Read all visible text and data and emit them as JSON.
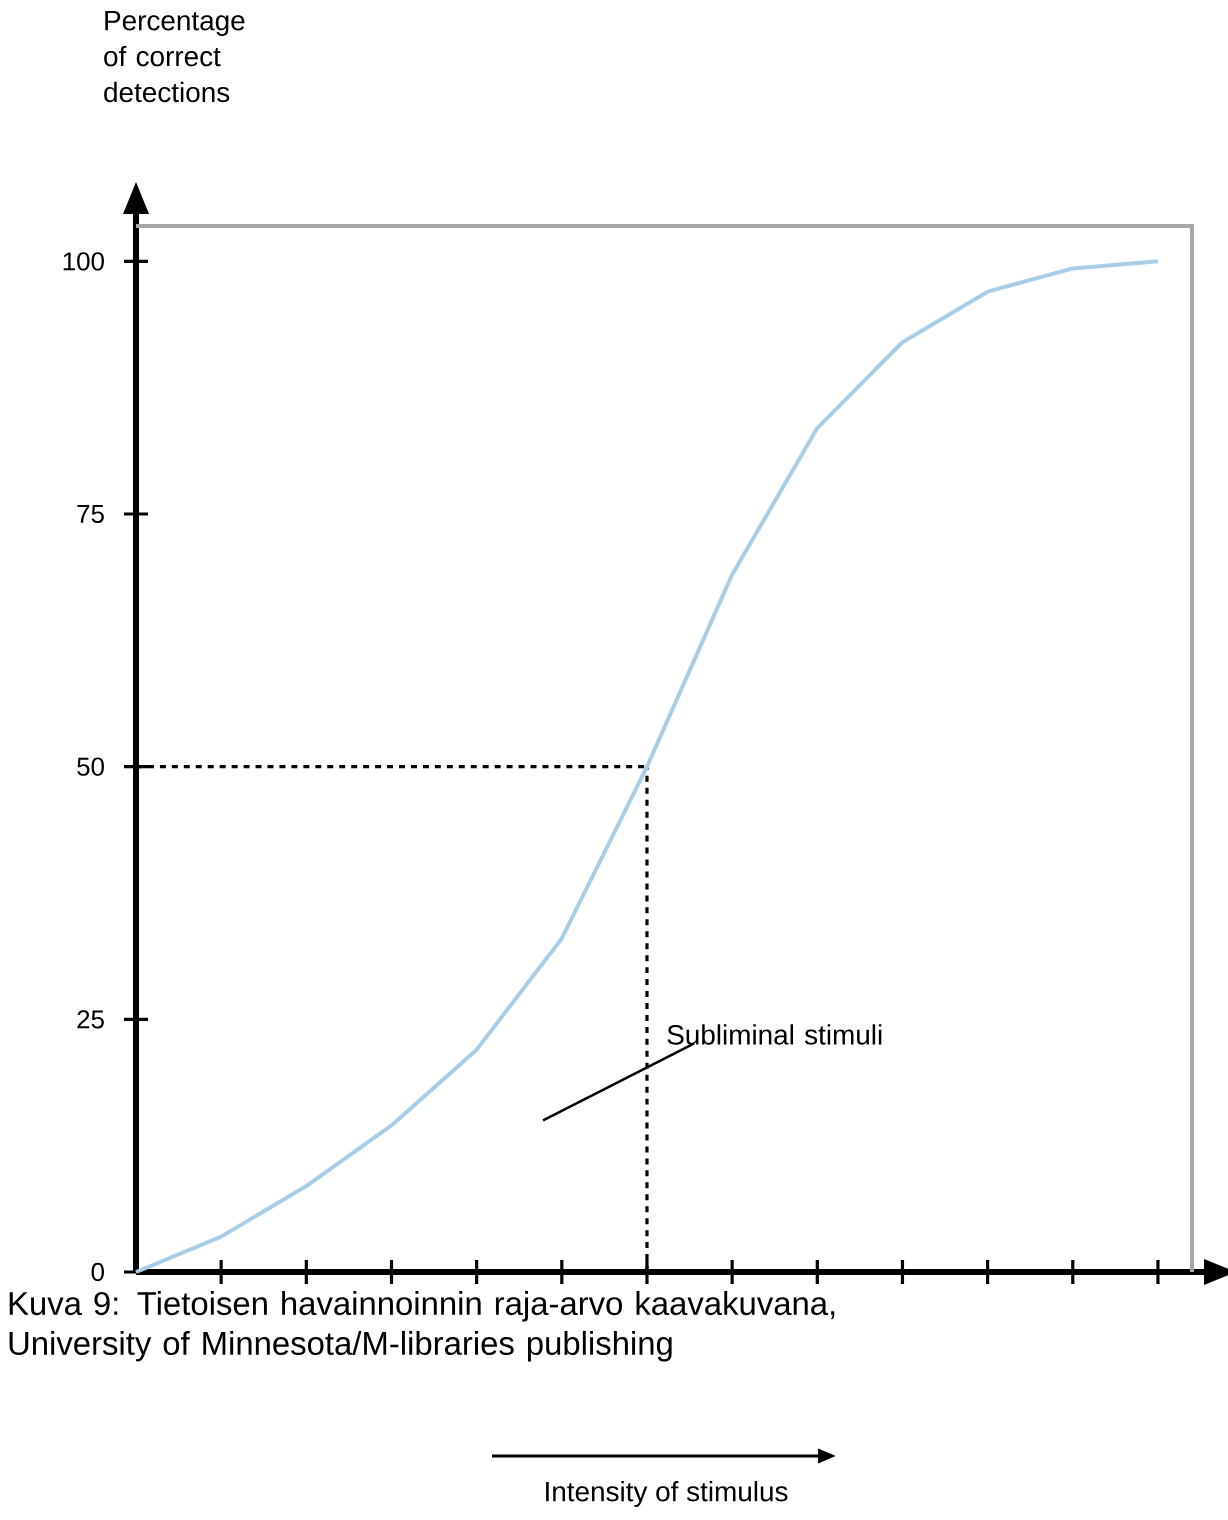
{
  "chart_data": {
    "type": "line",
    "ylabel": "Percentage of correct detections",
    "annotations": [
      "Subliminal stimuli",
      "Kuva 9: Tietoisen havainnoinnin raja-arvo kaavakuvana, University of Minnesota/M-libraries publishing",
      "Intensity of stimulus"
    ],
    "categories": [
      null,
      null,
      null,
      null,
      null,
      null,
      null,
      null,
      null,
      null,
      null,
      null,
      null
    ],
    "series": [
      {
        "color": "#a9cde6",
        "values": [
          0,
          3.5,
          8.5,
          14.5,
          22,
          33,
          50,
          69,
          83.5,
          92,
          97,
          99.3,
          100
        ]
      }
    ],
    "ylim": [
      0,
      103.5
    ],
    "yticks": [
      0,
      25,
      50,
      75,
      100
    ],
    "tick_labels": "y",
    "marker": "none",
    "line_style": "solid",
    "ref_lines": [
      {
        "axis": "y",
        "value": 50,
        "line_style": "dashed",
        "color": "#000000"
      }
    ]
  }
}
